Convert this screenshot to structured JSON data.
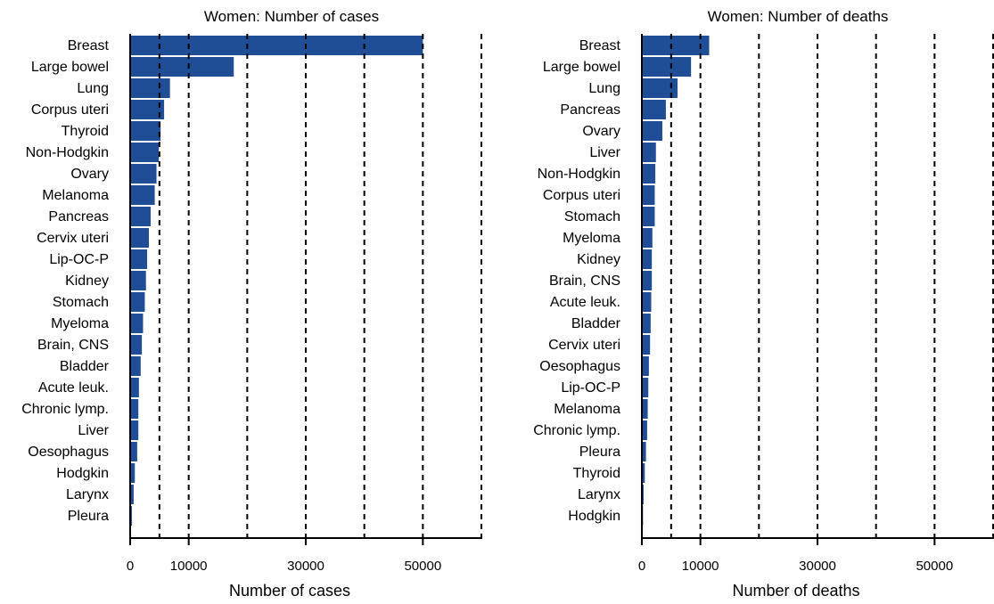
{
  "chart_data": [
    {
      "type": "bar",
      "orientation": "horizontal",
      "title": "Women: Number of cases",
      "xlabel": "Number of cases",
      "ylabel": "",
      "xlim": [
        0,
        60000
      ],
      "xticks": [
        0,
        10000,
        30000,
        50000
      ],
      "xtick_labels": [
        "0",
        "10000",
        "30000",
        "50000"
      ],
      "gridlines_dashed": [
        5000,
        10000,
        20000,
        30000,
        40000,
        50000,
        60000
      ],
      "bar_color": "#1f4e96",
      "categories": [
        "Breast",
        "Large bowel",
        "Lung",
        "Corpus uteri",
        "Thyroid",
        "Non-Hodgkin",
        "Ovary",
        "Melanoma",
        "Pancreas",
        "Cervix uteri",
        "Lip-OC-P",
        "Kidney",
        "Stomach",
        "Myeloma",
        "Brain, CNS",
        "Bladder",
        "Acute leuk.",
        "Chronic lymp.",
        "Liver",
        "Oesophagus",
        "Hodgkin",
        "Larynx",
        "Pleura"
      ],
      "values": [
        50000,
        17700,
        6800,
        5800,
        5200,
        4900,
        4500,
        4200,
        3500,
        3200,
        2900,
        2700,
        2500,
        2200,
        2000,
        1800,
        1500,
        1400,
        1400,
        1200,
        800,
        600,
        300
      ]
    },
    {
      "type": "bar",
      "orientation": "horizontal",
      "title": "Women: Number of deaths",
      "xlabel": "Number of deaths",
      "ylabel": "",
      "xlim": [
        0,
        60000
      ],
      "xticks": [
        0,
        10000,
        30000,
        50000
      ],
      "xtick_labels": [
        "0",
        "10000",
        "30000",
        "50000"
      ],
      "gridlines_dashed": [
        5000,
        10000,
        20000,
        30000,
        40000,
        50000,
        60000
      ],
      "bar_color": "#1f4e96",
      "categories": [
        "Breast",
        "Large bowel",
        "Lung",
        "Pancreas",
        "Ovary",
        "Liver",
        "Non-Hodgkin",
        "Corpus uteri",
        "Stomach",
        "Myeloma",
        "Kidney",
        "Brain, CNS",
        "Acute leuk.",
        "Bladder",
        "Cervix uteri",
        "Oesophagus",
        "Lip-OC-P",
        "Melanoma",
        "Chronic lymp.",
        "Pleura",
        "Thyroid",
        "Larynx",
        "Hodgkin"
      ],
      "values": [
        11500,
        8400,
        6100,
        4100,
        3500,
        2400,
        2300,
        2200,
        2200,
        1800,
        1700,
        1700,
        1600,
        1500,
        1400,
        1200,
        1100,
        1000,
        900,
        700,
        500,
        300,
        200
      ]
    }
  ]
}
